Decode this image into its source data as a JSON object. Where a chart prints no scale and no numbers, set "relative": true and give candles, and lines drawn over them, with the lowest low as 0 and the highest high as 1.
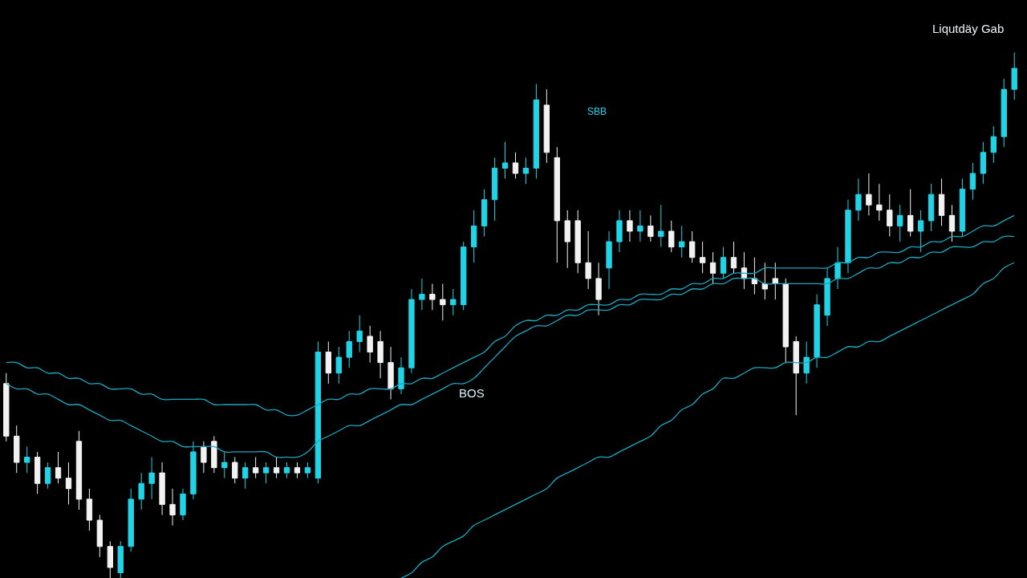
{
  "chart_data": {
    "type": "candlestick",
    "relative": true,
    "categories": [
      null,
      null,
      null,
      null,
      null,
      null,
      null,
      null,
      null,
      null,
      null,
      null,
      null,
      null,
      null,
      null,
      null,
      null,
      null,
      null,
      null,
      null,
      null,
      null,
      null,
      null,
      null,
      null,
      null,
      null,
      null,
      null,
      null,
      null,
      null,
      null,
      null,
      null,
      null,
      null,
      null,
      null,
      null,
      null,
      null,
      null,
      null,
      null,
      null,
      null,
      null,
      null,
      null,
      null,
      null,
      null,
      null,
      null,
      null,
      null,
      null,
      null,
      null,
      null,
      null,
      null,
      null,
      null,
      null,
      null,
      null,
      null,
      null,
      null,
      null,
      null,
      null,
      null,
      null,
      null,
      null,
      null,
      null,
      null,
      null,
      null,
      null,
      null,
      null,
      null,
      null,
      null,
      null,
      null,
      null,
      null,
      null,
      null
    ],
    "ohlc": [
      [
        0.37,
        0.39,
        0.26,
        0.27
      ],
      [
        0.27,
        0.29,
        0.2,
        0.22
      ],
      [
        0.22,
        0.25,
        0.2,
        0.23
      ],
      [
        0.23,
        0.24,
        0.16,
        0.18
      ],
      [
        0.18,
        0.22,
        0.17,
        0.21
      ],
      [
        0.21,
        0.24,
        0.18,
        0.19
      ],
      [
        0.19,
        0.22,
        0.14,
        0.17
      ],
      [
        0.26,
        0.28,
        0.13,
        0.15
      ],
      [
        0.15,
        0.17,
        0.09,
        0.11
      ],
      [
        0.11,
        0.12,
        0.04,
        0.06
      ],
      [
        0.06,
        0.07,
        0.0,
        0.02
      ],
      [
        0.01,
        0.07,
        0.0,
        0.06
      ],
      [
        0.06,
        0.17,
        0.05,
        0.15
      ],
      [
        0.15,
        0.2,
        0.13,
        0.18
      ],
      [
        0.18,
        0.23,
        0.15,
        0.2
      ],
      [
        0.2,
        0.22,
        0.12,
        0.14
      ],
      [
        0.14,
        0.17,
        0.1,
        0.12
      ],
      [
        0.12,
        0.17,
        0.11,
        0.16
      ],
      [
        0.16,
        0.26,
        0.15,
        0.24
      ],
      [
        0.25,
        0.26,
        0.2,
        0.22
      ],
      [
        0.26,
        0.27,
        0.2,
        0.21
      ],
      [
        0.21,
        0.24,
        0.19,
        0.22
      ],
      [
        0.22,
        0.23,
        0.18,
        0.19
      ],
      [
        0.19,
        0.22,
        0.17,
        0.21
      ],
      [
        0.21,
        0.23,
        0.19,
        0.2
      ],
      [
        0.2,
        0.22,
        0.18,
        0.21
      ],
      [
        0.21,
        0.23,
        0.19,
        0.2
      ],
      [
        0.2,
        0.22,
        0.19,
        0.21
      ],
      [
        0.21,
        0.22,
        0.19,
        0.2
      ],
      [
        0.2,
        0.22,
        0.19,
        0.21
      ],
      [
        0.19,
        0.45,
        0.18,
        0.43
      ],
      [
        0.43,
        0.45,
        0.37,
        0.39
      ],
      [
        0.39,
        0.44,
        0.37,
        0.42
      ],
      [
        0.42,
        0.47,
        0.4,
        0.45
      ],
      [
        0.45,
        0.5,
        0.43,
        0.47
      ],
      [
        0.46,
        0.48,
        0.41,
        0.43
      ],
      [
        0.45,
        0.47,
        0.38,
        0.41
      ],
      [
        0.41,
        0.44,
        0.34,
        0.36
      ],
      [
        0.36,
        0.42,
        0.35,
        0.4
      ],
      [
        0.4,
        0.55,
        0.39,
        0.53
      ],
      [
        0.53,
        0.57,
        0.51,
        0.54
      ],
      [
        0.54,
        0.56,
        0.51,
        0.53
      ],
      [
        0.53,
        0.56,
        0.49,
        0.52
      ],
      [
        0.52,
        0.55,
        0.5,
        0.53
      ],
      [
        0.52,
        0.64,
        0.51,
        0.63
      ],
      [
        0.63,
        0.7,
        0.6,
        0.67
      ],
      [
        0.67,
        0.74,
        0.65,
        0.72
      ],
      [
        0.72,
        0.8,
        0.68,
        0.78
      ],
      [
        0.78,
        0.83,
        0.76,
        0.79
      ],
      [
        0.79,
        0.81,
        0.76,
        0.77
      ],
      [
        0.77,
        0.8,
        0.75,
        0.78
      ],
      [
        0.78,
        0.94,
        0.76,
        0.91
      ],
      [
        0.9,
        0.93,
        0.79,
        0.81
      ],
      [
        0.8,
        0.82,
        0.6,
        0.68
      ],
      [
        0.68,
        0.7,
        0.59,
        0.64
      ],
      [
        0.68,
        0.7,
        0.58,
        0.6
      ],
      [
        0.6,
        0.66,
        0.55,
        0.57
      ],
      [
        0.57,
        0.6,
        0.5,
        0.53
      ],
      [
        0.59,
        0.66,
        0.55,
        0.64
      ],
      [
        0.64,
        0.7,
        0.62,
        0.68
      ],
      [
        0.68,
        0.7,
        0.64,
        0.66
      ],
      [
        0.66,
        0.7,
        0.64,
        0.67
      ],
      [
        0.67,
        0.69,
        0.64,
        0.65
      ],
      [
        0.65,
        0.71,
        0.63,
        0.66
      ],
      [
        0.66,
        0.68,
        0.62,
        0.63
      ],
      [
        0.63,
        0.67,
        0.61,
        0.64
      ],
      [
        0.64,
        0.66,
        0.6,
        0.61
      ],
      [
        0.61,
        0.64,
        0.58,
        0.6
      ],
      [
        0.6,
        0.62,
        0.56,
        0.58
      ],
      [
        0.58,
        0.63,
        0.57,
        0.61
      ],
      [
        0.61,
        0.64,
        0.58,
        0.59
      ],
      [
        0.59,
        0.62,
        0.55,
        0.57
      ],
      [
        0.57,
        0.61,
        0.54,
        0.56
      ],
      [
        0.56,
        0.6,
        0.53,
        0.55
      ],
      [
        0.57,
        0.6,
        0.53,
        0.56
      ],
      [
        0.56,
        0.57,
        0.41,
        0.44
      ],
      [
        0.45,
        0.46,
        0.31,
        0.39
      ],
      [
        0.39,
        0.45,
        0.37,
        0.42
      ],
      [
        0.42,
        0.54,
        0.4,
        0.52
      ],
      [
        0.5,
        0.59,
        0.48,
        0.57
      ],
      [
        0.57,
        0.63,
        0.55,
        0.6
      ],
      [
        0.6,
        0.72,
        0.58,
        0.7
      ],
      [
        0.7,
        0.76,
        0.68,
        0.73
      ],
      [
        0.73,
        0.77,
        0.69,
        0.71
      ],
      [
        0.71,
        0.75,
        0.68,
        0.7
      ],
      [
        0.7,
        0.73,
        0.65,
        0.67
      ],
      [
        0.67,
        0.71,
        0.64,
        0.69
      ],
      [
        0.69,
        0.74,
        0.65,
        0.66
      ],
      [
        0.66,
        0.7,
        0.62,
        0.68
      ],
      [
        0.68,
        0.75,
        0.66,
        0.73
      ],
      [
        0.73,
        0.76,
        0.67,
        0.69
      ],
      [
        0.69,
        0.71,
        0.64,
        0.66
      ],
      [
        0.66,
        0.76,
        0.65,
        0.74
      ],
      [
        0.74,
        0.79,
        0.72,
        0.77
      ],
      [
        0.77,
        0.83,
        0.75,
        0.81
      ],
      [
        0.81,
        0.86,
        0.79,
        0.84
      ],
      [
        0.84,
        0.95,
        0.82,
        0.93
      ],
      [
        0.93,
        1.0,
        0.91,
        0.97
      ]
    ],
    "series": [
      {
        "type": "line",
        "color": "#1ba8c0",
        "values": [
          0.41,
          0.41,
          0.4,
          0.4,
          0.39,
          0.39,
          0.38,
          0.38,
          0.37,
          0.37,
          0.36,
          0.36,
          0.36,
          0.35,
          0.35,
          0.34,
          0.34,
          0.34,
          0.34,
          0.34,
          0.33,
          0.33,
          0.33,
          0.33,
          0.33,
          0.32,
          0.32,
          0.31,
          0.31,
          0.32,
          0.33,
          0.34,
          0.34,
          0.35,
          0.35,
          0.36,
          0.36,
          0.36,
          0.37,
          0.37,
          0.38,
          0.38,
          0.39,
          0.4,
          0.41,
          0.42,
          0.43,
          0.45,
          0.46,
          0.48,
          0.49,
          0.49,
          0.5,
          0.5,
          0.51,
          0.51,
          0.52,
          0.52,
          0.52,
          0.53,
          0.53,
          0.54,
          0.54,
          0.54,
          0.55,
          0.55,
          0.56,
          0.56,
          0.57,
          0.57,
          0.58,
          0.58,
          0.58,
          0.59,
          0.59,
          0.59,
          0.59,
          0.59,
          0.59,
          0.59,
          0.6,
          0.6,
          0.61,
          0.61,
          0.62,
          0.62,
          0.62,
          0.63,
          0.63,
          0.64,
          0.64,
          0.65,
          0.65,
          0.66,
          0.67,
          0.67,
          0.68,
          0.69
        ]
      },
      {
        "type": "line",
        "color": "#1ba8c0",
        "values": [
          0.37,
          0.36,
          0.36,
          0.35,
          0.35,
          0.34,
          0.33,
          0.33,
          0.32,
          0.31,
          0.3,
          0.3,
          0.29,
          0.28,
          0.27,
          0.26,
          0.26,
          0.25,
          0.25,
          0.25,
          0.25,
          0.24,
          0.24,
          0.24,
          0.24,
          0.24,
          0.23,
          0.23,
          0.23,
          0.24,
          0.26,
          0.27,
          0.28,
          0.29,
          0.29,
          0.3,
          0.31,
          0.32,
          0.33,
          0.33,
          0.34,
          0.35,
          0.36,
          0.37,
          0.37,
          0.38,
          0.4,
          0.42,
          0.44,
          0.46,
          0.47,
          0.48,
          0.48,
          0.49,
          0.5,
          0.5,
          0.51,
          0.51,
          0.51,
          0.52,
          0.52,
          0.53,
          0.53,
          0.53,
          0.54,
          0.54,
          0.55,
          0.55,
          0.56,
          0.56,
          0.57,
          0.57,
          0.57,
          0.56,
          0.56,
          0.56,
          0.56,
          0.56,
          0.56,
          0.56,
          0.57,
          0.57,
          0.58,
          0.59,
          0.59,
          0.6,
          0.6,
          0.61,
          0.61,
          0.62,
          0.62,
          0.63,
          0.63,
          0.63,
          0.64,
          0.64,
          0.65,
          0.65
        ]
      },
      {
        "type": "line",
        "color": "#1ba8c0",
        "values": [
          null,
          null,
          null,
          null,
          null,
          null,
          null,
          null,
          null,
          null,
          null,
          null,
          null,
          null,
          null,
          null,
          null,
          null,
          null,
          null,
          null,
          null,
          null,
          null,
          null,
          null,
          null,
          null,
          null,
          null,
          null,
          null,
          null,
          null,
          null,
          null,
          null,
          null,
          0.0,
          0.01,
          0.03,
          0.04,
          0.06,
          0.07,
          0.08,
          0.1,
          0.11,
          0.12,
          0.13,
          0.14,
          0.15,
          0.16,
          0.17,
          0.19,
          0.2,
          0.21,
          0.22,
          0.23,
          0.23,
          0.24,
          0.25,
          0.26,
          0.27,
          0.29,
          0.3,
          0.32,
          0.33,
          0.35,
          0.36,
          0.38,
          0.38,
          0.39,
          0.4,
          0.4,
          0.4,
          0.41,
          0.41,
          0.41,
          0.42,
          0.42,
          0.43,
          0.44,
          0.44,
          0.45,
          0.45,
          0.46,
          0.47,
          0.48,
          0.49,
          0.5,
          0.51,
          0.52,
          0.53,
          0.54,
          0.56,
          0.57,
          0.59,
          0.6
        ]
      }
    ],
    "annotations": [
      "Liqutdäy Gab",
      "SBB",
      "BOS"
    ]
  }
}
